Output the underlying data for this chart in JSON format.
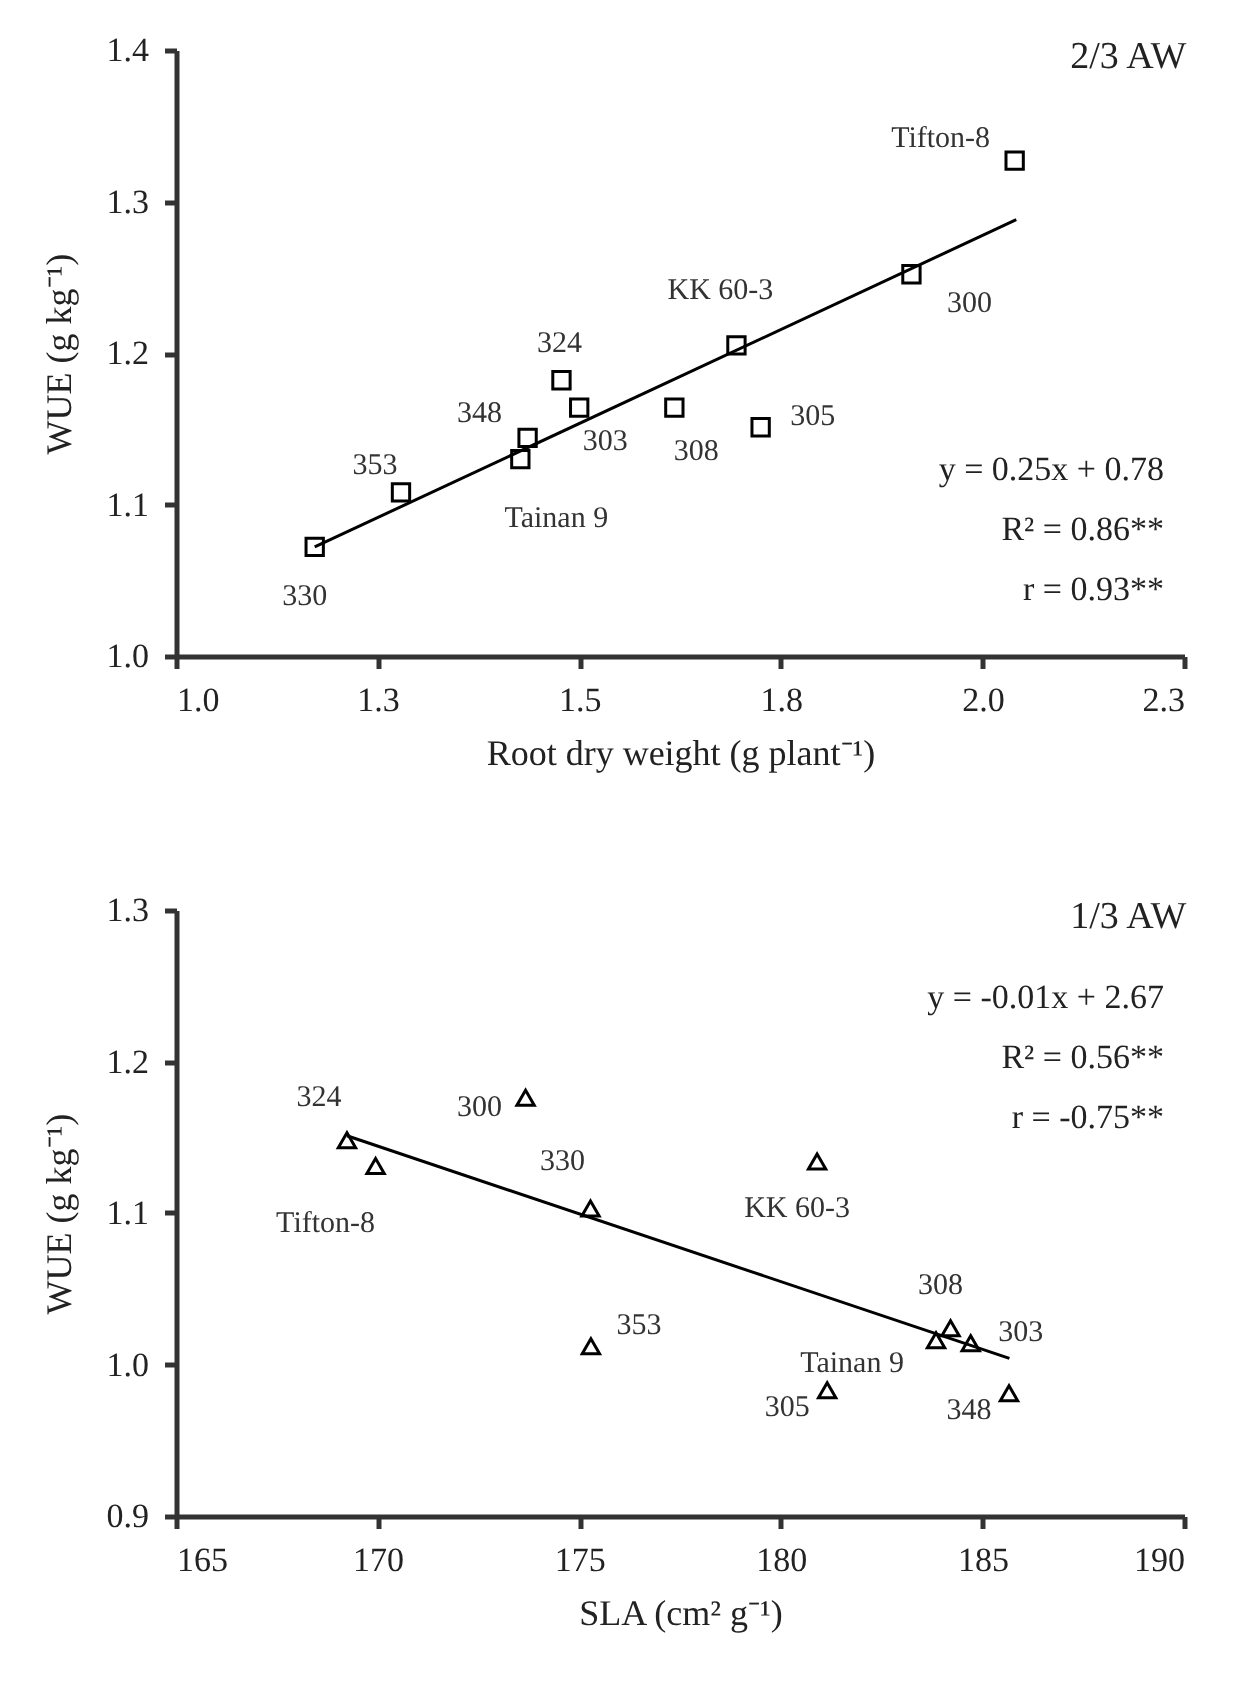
{
  "chart_data": [
    {
      "type": "scatter",
      "title": "2/3 AW",
      "xlabel": "Root dry weight (g plant⁻¹)",
      "ylabel": "WUE (g kg⁻¹)",
      "xlim": [
        1.0,
        2.25
      ],
      "xticks": [
        {
          "value": 1,
          "label": "1.0"
        },
        {
          "value": 1.25,
          "label": "1.3"
        },
        1.5,
        {
          "value": 1.75,
          "label": "1.8"
        },
        {
          "value": 2,
          "label": "2.0"
        },
        {
          "value": 2.25,
          "label": "2.3"
        }
      ],
      "ylim": [
        1.0,
        1.4
      ],
      "yticks": [
        {
          "value": 1,
          "label": "1.0"
        },
        1.1,
        1.2,
        1.3,
        1.4
      ],
      "grid": false,
      "series": [
        {
          "type": "scatter",
          "marker": "square",
          "color": "#000000",
          "x": [
            1.172,
            1.279,
            1.427,
            1.436,
            1.478,
            1.5,
            1.618,
            1.695,
            1.725,
            1.912,
            2.04
          ],
          "values": [
            1.072,
            1.108,
            1.13,
            1.144,
            1.182,
            1.164,
            1.164,
            1.205,
            1.151,
            1.252,
            1.327
          ]
        },
        {
          "type": "line",
          "color": "#000000",
          "line_style": "solid",
          "x": [
            1.172,
            2.042
          ],
          "values": [
            1.072,
            1.288
          ]
        }
      ],
      "annotations": [
        "y = 0.25x + 0.78",
        "R² = 0.86**",
        "r = 0.93**",
        {
          "text": "330",
          "x": 1.172,
          "y": 1.072
        },
        {
          "text": "353",
          "x": 1.279,
          "y": 1.108
        },
        {
          "text": "Tainan 9",
          "x": 1.427,
          "y": 1.13
        },
        {
          "text": "348",
          "x": 1.436,
          "y": 1.144
        },
        {
          "text": "324",
          "x": 1.478,
          "y": 1.182
        },
        {
          "text": "303",
          "x": 1.5,
          "y": 1.164
        },
        {
          "text": "308",
          "x": 1.618,
          "y": 1.164
        },
        {
          "text": "KK 60-3",
          "x": 1.695,
          "y": 1.205
        },
        {
          "text": "305",
          "x": 1.725,
          "y": 1.151
        },
        {
          "text": "300",
          "x": 1.912,
          "y": 1.252
        },
        {
          "text": "Tifton-8",
          "x": 2.04,
          "y": 1.327
        }
      ]
    },
    {
      "type": "scatter",
      "title": "1/3 AW",
      "xlabel": "SLA (cm² g⁻¹)",
      "ylabel": "WUE (g kg⁻¹)",
      "xlim": [
        165,
        190
      ],
      "xticks": [
        165,
        170,
        175,
        180,
        185,
        190
      ],
      "ylim": [
        0.9,
        1.3
      ],
      "yticks": [
        0.9,
        {
          "value": 1,
          "label": "1.0"
        },
        1.1,
        1.2,
        1.3
      ],
      "grid": false,
      "series": [
        {
          "type": "scatter",
          "marker": "triangle",
          "color": "#000000",
          "x": [
            169.24,
            169.95,
            173.67,
            175.28,
            175.29,
            180.9,
            184.21,
            184.71,
            183.85,
            181.15,
            185.66
          ],
          "values": [
            1.148,
            1.131,
            1.176,
            1.103,
            1.012,
            1.134,
            1.024,
            1.014,
            1.016,
            0.983,
            0.981
          ]
        },
        {
          "type": "line",
          "color": "#000000",
          "line_style": "solid",
          "x": [
            169.24,
            185.67
          ],
          "values": [
            1.151,
            1.004
          ]
        }
      ],
      "annotations": [
        "y = -0.01x + 2.67",
        "R² = 0.56**",
        "r = -0.75**",
        {
          "text": "324",
          "x": 169.24,
          "y": 1.148
        },
        {
          "text": "Tifton-8",
          "x": 169.95,
          "y": 1.131
        },
        {
          "text": "300",
          "x": 173.67,
          "y": 1.176
        },
        {
          "text": "330",
          "x": 175.28,
          "y": 1.103
        },
        {
          "text": "353",
          "x": 175.29,
          "y": 1.012
        },
        {
          "text": "KK 60-3",
          "x": 180.9,
          "y": 1.134
        },
        {
          "text": "308",
          "x": 184.21,
          "y": 1.024
        },
        {
          "text": "303",
          "x": 184.71,
          "y": 1.014
        },
        {
          "text": "Tainan 9",
          "x": 183.85,
          "y": 1.016
        },
        {
          "text": "305",
          "x": 181.15,
          "y": 0.983
        },
        {
          "text": "348",
          "x": 185.66,
          "y": 0.981
        }
      ]
    }
  ]
}
